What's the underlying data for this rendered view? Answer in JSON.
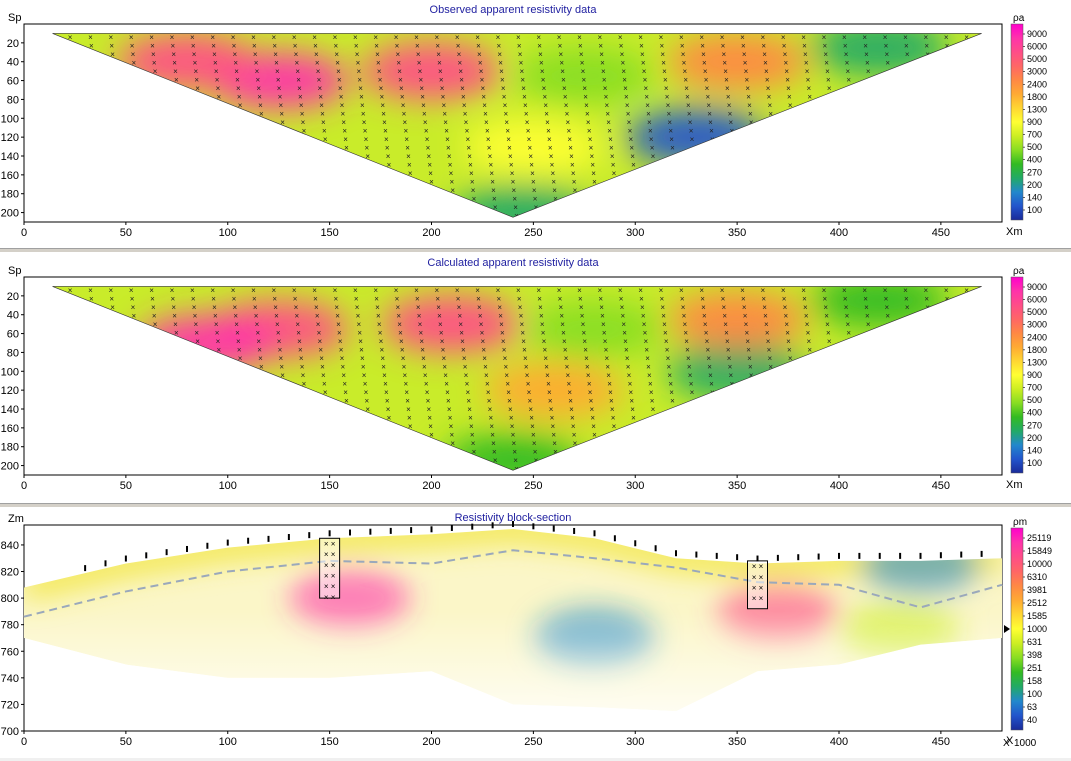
{
  "panels": [
    {
      "id": "observed",
      "title": "Observed apparent resistivity data",
      "y_label": "Sp",
      "x_label": "Xm",
      "legend_unit": "ρa",
      "legend_ticks": [
        "9000",
        "6000",
        "5000",
        "3000",
        "2400",
        "1800",
        "1300",
        "900",
        "700",
        "500",
        "400",
        "270",
        "200",
        "140",
        "100"
      ],
      "x_ticks": [
        "0",
        "50",
        "100",
        "150",
        "200",
        "250",
        "300",
        "350",
        "400",
        "450"
      ],
      "y_ticks": [
        "20",
        "40",
        "60",
        "80",
        "100",
        "120",
        "140",
        "160",
        "180",
        "200"
      ]
    },
    {
      "id": "calculated",
      "title": "Calculated apparent resistivity data",
      "y_label": "Sp",
      "x_label": "Xm",
      "legend_unit": "ρa",
      "legend_ticks": [
        "9000",
        "6000",
        "5000",
        "3000",
        "2400",
        "1800",
        "1300",
        "900",
        "700",
        "500",
        "400",
        "270",
        "200",
        "140",
        "100"
      ],
      "x_ticks": [
        "0",
        "50",
        "100",
        "150",
        "200",
        "250",
        "300",
        "350",
        "400",
        "450"
      ],
      "y_ticks": [
        "20",
        "40",
        "60",
        "80",
        "100",
        "120",
        "140",
        "160",
        "180",
        "200"
      ]
    },
    {
      "id": "block",
      "title": "Resistivity block-section",
      "y_label": "Zm",
      "x_label": "X",
      "legend_unit": "ρm",
      "legend_extra": "1000",
      "legend_ticks": [
        "25119",
        "15849",
        "10000",
        "6310",
        "3981",
        "2512",
        "1585",
        "1000",
        "631",
        "398",
        "251",
        "158",
        "100",
        "63",
        "40"
      ],
      "x_ticks": [
        "0",
        "50",
        "100",
        "150",
        "200",
        "250",
        "300",
        "350",
        "400",
        "450"
      ],
      "y_ticks": [
        "840",
        "820",
        "800",
        "780",
        "760",
        "740",
        "720",
        "700"
      ]
    }
  ],
  "chart_data": [
    {
      "type": "heatmap",
      "title": "Observed apparent resistivity data",
      "xlabel": "Xm",
      "ylabel": "Sp",
      "xlim": [
        0,
        480
      ],
      "ylim": [
        210,
        0
      ],
      "x_ticks": [
        0,
        50,
        100,
        150,
        200,
        250,
        300,
        350,
        400,
        450
      ],
      "y_ticks": [
        20,
        40,
        60,
        80,
        100,
        120,
        140,
        160,
        180,
        200
      ],
      "colorbar": {
        "label": "ρa",
        "ticks": [
          9000,
          6000,
          5000,
          3000,
          2400,
          1800,
          1300,
          900,
          700,
          500,
          400,
          270,
          200,
          140,
          100
        ]
      },
      "pseudosection_extent": {
        "x_left": 14,
        "x_right": 470,
        "x_apex": 240,
        "sp_top": 10,
        "sp_apex": 205
      },
      "features": [
        {
          "x": 125,
          "sp": 60,
          "level": 6000
        },
        {
          "x": 80,
          "sp": 40,
          "level": 5000
        },
        {
          "x": 200,
          "sp": 50,
          "level": 5000
        },
        {
          "x": 250,
          "sp": 130,
          "level": 900
        },
        {
          "x": 275,
          "sp": 55,
          "level": 500
        },
        {
          "x": 330,
          "sp": 120,
          "level": 140
        },
        {
          "x": 350,
          "sp": 40,
          "level": 2400
        },
        {
          "x": 420,
          "sp": 25,
          "level": 270
        },
        {
          "x": 245,
          "sp": 200,
          "level": 270
        }
      ]
    },
    {
      "type": "heatmap",
      "title": "Calculated apparent resistivity data",
      "xlabel": "Xm",
      "ylabel": "Sp",
      "xlim": [
        0,
        480
      ],
      "ylim": [
        210,
        0
      ],
      "x_ticks": [
        0,
        50,
        100,
        150,
        200,
        250,
        300,
        350,
        400,
        450
      ],
      "y_ticks": [
        20,
        40,
        60,
        80,
        100,
        120,
        140,
        160,
        180,
        200
      ],
      "colorbar": {
        "label": "ρa",
        "ticks": [
          9000,
          6000,
          5000,
          3000,
          2400,
          1800,
          1300,
          900,
          700,
          500,
          400,
          270,
          200,
          140,
          100
        ]
      },
      "pseudosection_extent": {
        "x_left": 14,
        "x_right": 470,
        "x_apex": 240,
        "sp_top": 10,
        "sp_apex": 205
      },
      "features": [
        {
          "x": 125,
          "sp": 55,
          "level": 5000
        },
        {
          "x": 90,
          "sp": 70,
          "level": 6000
        },
        {
          "x": 210,
          "sp": 50,
          "level": 5000
        },
        {
          "x": 260,
          "sp": 120,
          "level": 1800
        },
        {
          "x": 280,
          "sp": 55,
          "level": 500
        },
        {
          "x": 350,
          "sp": 100,
          "level": 270
        },
        {
          "x": 350,
          "sp": 45,
          "level": 2400
        },
        {
          "x": 420,
          "sp": 25,
          "level": 400
        },
        {
          "x": 240,
          "sp": 195,
          "level": 400
        }
      ]
    },
    {
      "type": "heatmap",
      "title": "Resistivity block-section",
      "xlabel": "X",
      "ylabel": "Zm",
      "xlim": [
        0,
        480
      ],
      "ylim": [
        700,
        855
      ],
      "x_ticks": [
        0,
        50,
        100,
        150,
        200,
        250,
        300,
        350,
        400,
        450
      ],
      "y_ticks": [
        840,
        820,
        800,
        780,
        760,
        740,
        720,
        700
      ],
      "colorbar": {
        "label": "ρm",
        "ticks": [
          25119,
          15849,
          10000,
          6310,
          3981,
          2512,
          1585,
          1000,
          631,
          398,
          251,
          158,
          100,
          63,
          40
        ]
      },
      "surface": {
        "x": [
          0,
          50,
          100,
          150,
          200,
          240,
          280,
          320,
          360,
          400,
          440,
          480
        ],
        "z": [
          808,
          826,
          838,
          845,
          848,
          852,
          845,
          830,
          826,
          828,
          828,
          830
        ]
      },
      "bedrock_line": {
        "x": [
          0,
          50,
          100,
          150,
          200,
          240,
          280,
          320,
          360,
          400,
          440,
          480
        ],
        "z": [
          786,
          805,
          820,
          828,
          826,
          836,
          830,
          823,
          812,
          810,
          793,
          810
        ]
      },
      "boreholes": [
        {
          "x": 150,
          "top": 845,
          "bottom": 800
        },
        {
          "x": 360,
          "top": 828,
          "bottom": 792
        }
      ],
      "features": [
        {
          "x": 160,
          "z": 800,
          "level": 15849
        },
        {
          "x": 280,
          "z": 770,
          "level": 100
        },
        {
          "x": 370,
          "z": 790,
          "level": 10000
        },
        {
          "x": 430,
          "z": 775,
          "level": 631
        },
        {
          "x": 440,
          "z": 825,
          "level": 100
        }
      ]
    }
  ]
}
